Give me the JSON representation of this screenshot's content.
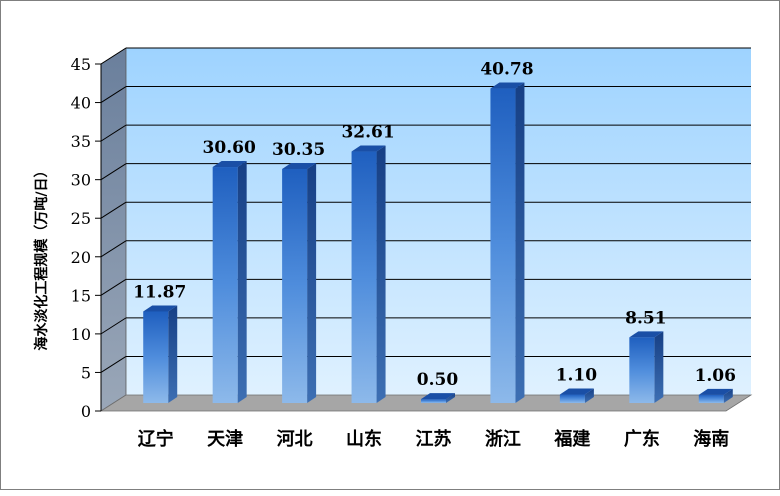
{
  "chart_data": {
    "type": "bar",
    "ylabel": "海水淡化工程规模（万吨/日）",
    "categories": [
      "辽宁",
      "天津",
      "河北",
      "山东",
      "江苏",
      "浙江",
      "福建",
      "广东",
      "海南"
    ],
    "values": [
      11.87,
      30.6,
      30.35,
      32.61,
      0.5,
      40.78,
      1.1,
      8.51,
      1.06
    ],
    "value_labels": [
      "11.87",
      "30.60",
      "30.35",
      "32.61",
      "0.50",
      "40.78",
      "1.10",
      "8.51",
      "1.06"
    ],
    "ylim": [
      0,
      45
    ],
    "yticks": [
      "0",
      "5",
      "10",
      "15",
      "20",
      "25",
      "30",
      "35",
      "40",
      "45"
    ],
    "grid": true,
    "legend": "none",
    "colors": {
      "bar_top": "#1f5fbf",
      "bar_bottom": "#8db9ea",
      "wall_top": "#9ed3ff",
      "wall_bottom": "#dff1ff",
      "floor": "#a6a6a6",
      "side_wall": "#7f90a8"
    }
  }
}
